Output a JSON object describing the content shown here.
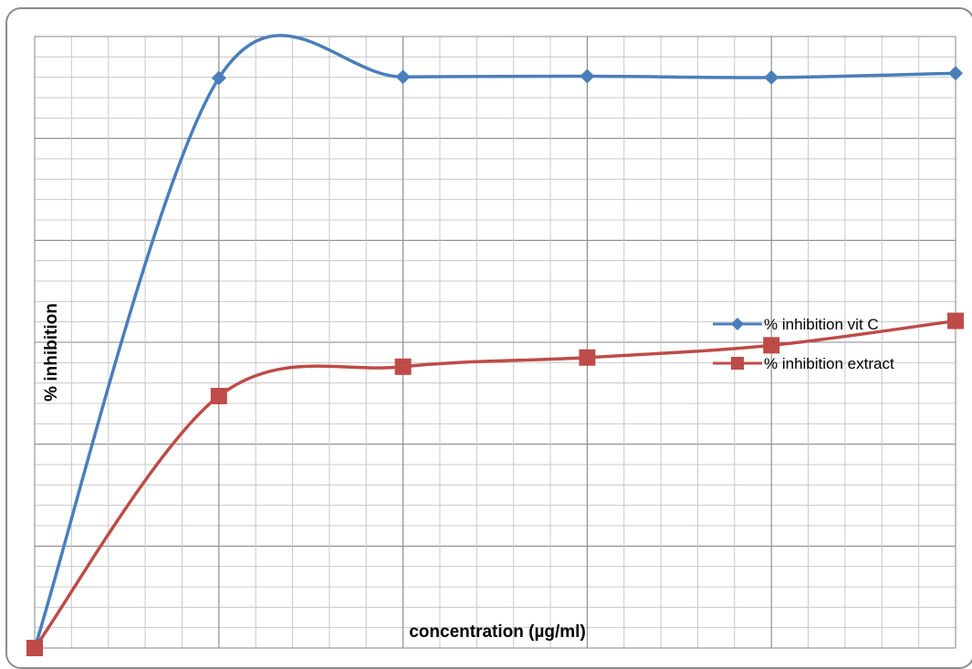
{
  "chart_data": {
    "type": "line",
    "title": "",
    "xlabel": "concentration (µg/ml)",
    "ylabel": "% inhibition",
    "x": [
      0,
      1,
      2,
      3,
      4,
      5
    ],
    "xlim": [
      0,
      5
    ],
    "ylim": [
      0,
      100
    ],
    "grid": true,
    "legend_position": "right",
    "series": [
      {
        "name": "% inhibition vit C",
        "color": "#4a7ebb",
        "marker": "diamond",
        "smooth": true,
        "values": [
          0,
          93.2,
          93.4,
          93.5,
          93.3,
          94.0
        ]
      },
      {
        "name": "% inhibition extract",
        "color": "#be4b48",
        "marker": "square",
        "smooth": true,
        "values": [
          0,
          41.2,
          46.0,
          47.5,
          49.5,
          53.5
        ]
      }
    ]
  }
}
